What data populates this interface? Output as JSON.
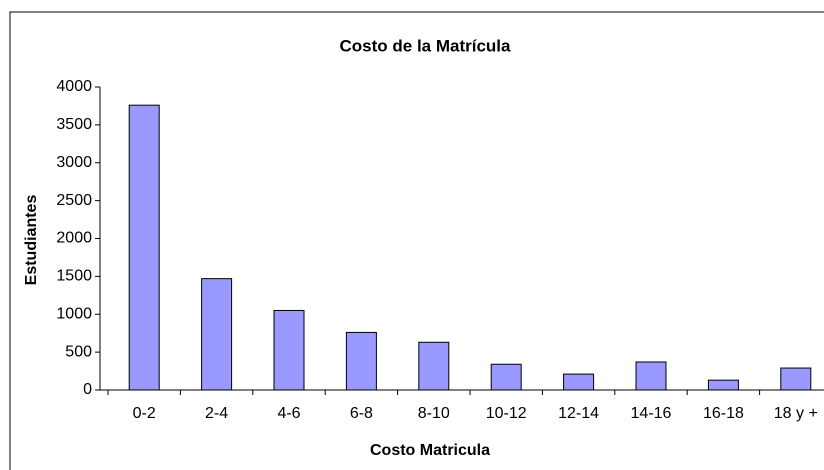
{
  "chart_data": {
    "type": "bar",
    "title": "Costo de la Matrícula",
    "x_label": "Costo Matricula",
    "y_label": "Estudiantes",
    "categories": [
      "0-2",
      "2-4",
      "4-6",
      "6-8",
      "8-10",
      "10-12",
      "12-14",
      "14-16",
      "16-18",
      "18 y +"
    ],
    "values": [
      3760,
      1470,
      1050,
      760,
      630,
      340,
      210,
      370,
      130,
      290
    ],
    "color": "#9999ff",
    "ylim": [
      0,
      4000
    ],
    "yticks": [
      0,
      500,
      1000,
      1500,
      2000,
      2500,
      3000,
      3500,
      4000
    ],
    "grid": false
  }
}
